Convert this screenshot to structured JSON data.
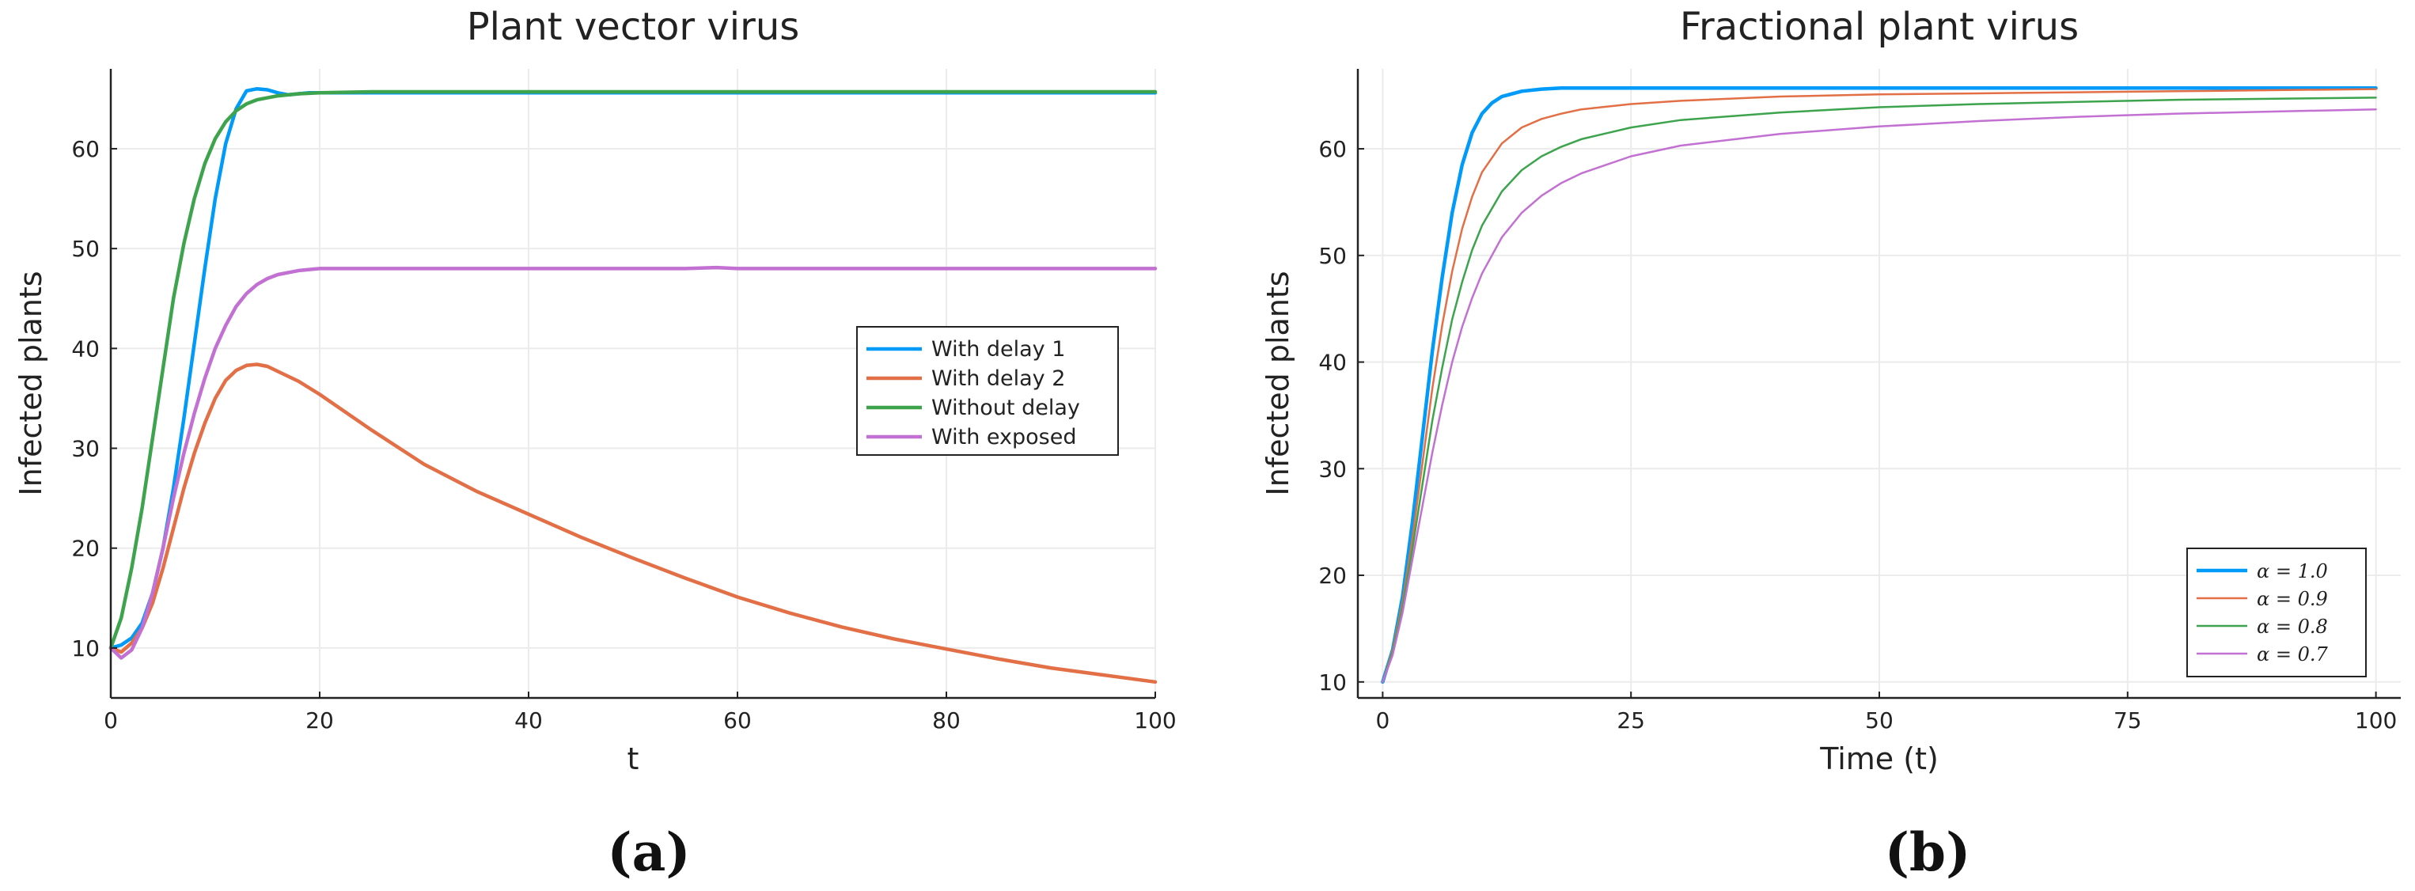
{
  "chart_data": [
    {
      "type": "line",
      "title": "Plant vector virus",
      "xlabel": "t",
      "ylabel": "Infected plants",
      "xlim": [
        0,
        100
      ],
      "ylim": [
        5,
        68
      ],
      "xticks": [
        0,
        20,
        40,
        60,
        80,
        100
      ],
      "yticks": [
        10,
        20,
        30,
        40,
        50,
        60
      ],
      "grid": true,
      "legend_position": "right",
      "panel_label": "(a)",
      "series": [
        {
          "name": "With delay 1",
          "color": "#009af9",
          "x": [
            0,
            1,
            2,
            3,
            4,
            5,
            6,
            7,
            8,
            9,
            10,
            11,
            12,
            13,
            14,
            15,
            16,
            17,
            18,
            19,
            20,
            25,
            30,
            40,
            50,
            60,
            70,
            80,
            90,
            100
          ],
          "y": [
            10,
            10.3,
            11,
            12.5,
            15.5,
            20,
            26,
            33,
            40.5,
            48,
            55,
            60.5,
            64,
            65.8,
            66,
            65.9,
            65.6,
            65.4,
            65.5,
            65.6,
            65.6,
            65.6,
            65.6,
            65.6,
            65.6,
            65.6,
            65.6,
            65.6,
            65.6,
            65.6
          ]
        },
        {
          "name": "With delay 2",
          "color": "#e26f46",
          "x": [
            0,
            1,
            2,
            3,
            4,
            5,
            6,
            7,
            8,
            9,
            10,
            11,
            12,
            13,
            14,
            15,
            16,
            18,
            20,
            25,
            30,
            35,
            40,
            45,
            50,
            55,
            60,
            65,
            70,
            75,
            80,
            85,
            90,
            95,
            100
          ],
          "y": [
            10,
            9.6,
            10.5,
            12,
            14.5,
            18,
            22,
            26,
            29.5,
            32.5,
            35,
            36.8,
            37.8,
            38.3,
            38.4,
            38.2,
            37.7,
            36.7,
            35.4,
            31.8,
            28.4,
            25.7,
            23.4,
            21.1,
            19,
            17,
            15.1,
            13.5,
            12.1,
            10.9,
            9.9,
            8.9,
            8,
            7.3,
            6.6
          ]
        },
        {
          "name": "Without delay",
          "color": "#3da44d",
          "x": [
            0,
            1,
            2,
            3,
            4,
            5,
            6,
            7,
            8,
            9,
            10,
            11,
            12,
            13,
            14,
            15,
            16,
            18,
            20,
            25,
            30,
            40,
            50,
            60,
            70,
            80,
            90,
            100
          ],
          "y": [
            10,
            13,
            18,
            24,
            31,
            38,
            45,
            50.5,
            55,
            58.5,
            61,
            62.7,
            63.8,
            64.5,
            64.9,
            65.1,
            65.3,
            65.5,
            65.6,
            65.7,
            65.7,
            65.7,
            65.7,
            65.7,
            65.7,
            65.7,
            65.7,
            65.7
          ]
        },
        {
          "name": "With exposed",
          "color": "#c271d2",
          "x": [
            0,
            1,
            2,
            3,
            4,
            5,
            6,
            7,
            8,
            9,
            10,
            11,
            12,
            13,
            14,
            15,
            16,
            17,
            18,
            19,
            20,
            22,
            25,
            30,
            40,
            50,
            55,
            58,
            60,
            70,
            80,
            90,
            100
          ],
          "y": [
            10,
            9,
            9.8,
            12,
            15.5,
            20,
            25,
            29.5,
            33.5,
            37,
            40,
            42.3,
            44.2,
            45.5,
            46.4,
            47,
            47.4,
            47.6,
            47.8,
            47.9,
            48,
            48,
            48,
            48,
            48,
            48,
            48,
            48.1,
            48,
            48,
            48,
            48,
            48
          ]
        }
      ]
    },
    {
      "type": "line",
      "title": "Fractional plant virus",
      "xlabel": "Time (t)",
      "ylabel": "Infected plants",
      "xlim": [
        -2.5,
        102.5
      ],
      "ylim": [
        8.5,
        67.5
      ],
      "xticks": [
        0,
        25,
        50,
        75,
        100
      ],
      "yticks": [
        10,
        20,
        30,
        40,
        50,
        60
      ],
      "grid": true,
      "legend_position": "bottom-right",
      "panel_label": "(b)",
      "series": [
        {
          "name": "α = 1.0",
          "color": "#009af9",
          "x": [
            0,
            1,
            2,
            3,
            4,
            5,
            6,
            7,
            8,
            9,
            10,
            11,
            12,
            14,
            16,
            18,
            20,
            25,
            30,
            40,
            50,
            60,
            70,
            80,
            90,
            100
          ],
          "y": [
            10,
            13,
            18,
            25,
            33,
            41,
            48,
            54,
            58.5,
            61.5,
            63.3,
            64.3,
            64.9,
            65.4,
            65.6,
            65.7,
            65.7,
            65.7,
            65.7,
            65.7,
            65.7,
            65.7,
            65.7,
            65.7,
            65.7,
            65.7
          ]
        },
        {
          "name": "α = 0.9",
          "color": "#e26f46",
          "x": [
            0,
            1,
            2,
            3,
            4,
            5,
            6,
            7,
            8,
            9,
            10,
            12,
            14,
            16,
            18,
            20,
            25,
            30,
            40,
            50,
            60,
            70,
            80,
            90,
            100
          ],
          "y": [
            10,
            13,
            17.5,
            23.5,
            30.5,
            37.5,
            43.5,
            48.5,
            52.5,
            55.5,
            57.8,
            60.5,
            62,
            62.8,
            63.3,
            63.7,
            64.2,
            64.5,
            64.9,
            65.1,
            65.2,
            65.3,
            65.4,
            65.5,
            65.6
          ]
        },
        {
          "name": "α = 0.8",
          "color": "#3da44d",
          "x": [
            0,
            1,
            2,
            3,
            4,
            5,
            6,
            7,
            8,
            9,
            10,
            12,
            14,
            16,
            18,
            20,
            25,
            30,
            40,
            50,
            60,
            70,
            80,
            90,
            100
          ],
          "y": [
            10,
            12.8,
            17,
            22.5,
            28.5,
            34.5,
            39.5,
            44,
            47.5,
            50.5,
            52.8,
            56,
            58,
            59.3,
            60.2,
            60.9,
            62,
            62.7,
            63.4,
            63.9,
            64.2,
            64.4,
            64.6,
            64.7,
            64.8
          ]
        },
        {
          "name": "α = 0.7",
          "color": "#c271d2",
          "x": [
            0,
            1,
            2,
            3,
            4,
            5,
            6,
            7,
            8,
            9,
            10,
            12,
            14,
            16,
            18,
            20,
            25,
            30,
            40,
            50,
            60,
            70,
            80,
            90,
            100
          ],
          "y": [
            10,
            12.5,
            16.5,
            21.5,
            26.5,
            31.5,
            36,
            40,
            43.3,
            46,
            48.3,
            51.7,
            54,
            55.6,
            56.8,
            57.7,
            59.3,
            60.3,
            61.4,
            62.1,
            62.6,
            63,
            63.3,
            63.5,
            63.7
          ]
        }
      ]
    }
  ]
}
